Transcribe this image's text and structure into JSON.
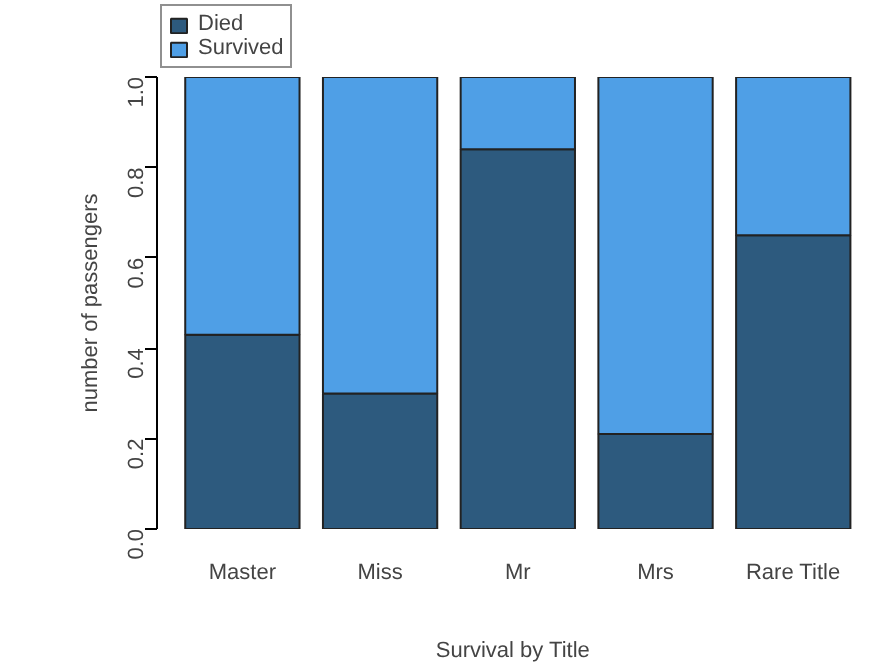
{
  "chart_data": {
    "type": "bar",
    "stacked": true,
    "xlabel": "Survival by Title",
    "ylabel": "number of passengers",
    "categories": [
      "Master",
      "Miss",
      "Mr",
      "Mrs",
      "Rare Title"
    ],
    "series": [
      {
        "name": "Died",
        "color": "#2d5a7e",
        "values": [
          0.43,
          0.3,
          0.84,
          0.21,
          0.65
        ]
      },
      {
        "name": "Survived",
        "color": "#4f9fe6",
        "values": [
          0.57,
          0.7,
          0.16,
          0.79,
          0.35
        ]
      }
    ],
    "ylim": [
      0,
      1
    ],
    "yticks": [
      {
        "value": 0,
        "label": "0.0"
      },
      {
        "value": 0.2,
        "label": "0.2"
      },
      {
        "value": 0.4,
        "label": "0.4"
      },
      {
        "value": 0.6,
        "label": "0.6"
      },
      {
        "value": 0.8,
        "label": "0.8"
      },
      {
        "value": 1,
        "label": "1.0"
      }
    ],
    "grid": false,
    "legend": "top left"
  }
}
